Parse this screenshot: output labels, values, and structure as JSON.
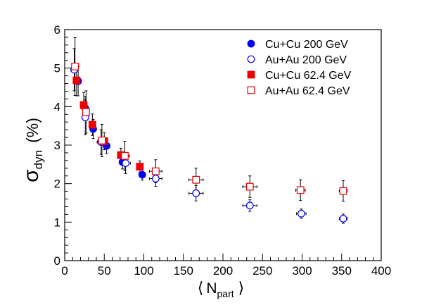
{
  "chart_data": {
    "type": "scatter",
    "title": "",
    "xlabel": {
      "open": "⟨",
      "main": "N",
      "sub": "part",
      "close": "⟩"
    },
    "ylabel": {
      "main": "σ",
      "sub": "dyn",
      "unit": "(%)"
    },
    "xlim": [
      0,
      400
    ],
    "ylim": [
      0,
      6
    ],
    "x_ticks": [
      0,
      50,
      100,
      150,
      200,
      250,
      300,
      350,
      400
    ],
    "y_ticks": [
      0,
      1,
      2,
      3,
      4,
      5,
      6
    ],
    "grid": false,
    "legend_position": "top-right",
    "series": [
      {
        "name": "Cu+Cu 200 GeV",
        "marker": "circle",
        "filled": true,
        "color": "#0000ff",
        "points": [
          {
            "x": 17,
            "y": 4.66,
            "xerr": 2,
            "yerr": 0.38
          },
          {
            "x": 26,
            "y": 3.96,
            "xerr": 2,
            "yerr": 0.3
          },
          {
            "x": 36,
            "y": 3.42,
            "xerr": 2,
            "yerr": 0.25
          },
          {
            "x": 53,
            "y": 2.98,
            "xerr": 3,
            "yerr": 0.2
          },
          {
            "x": 73,
            "y": 2.56,
            "xerr": 3,
            "yerr": 0.18
          },
          {
            "x": 98,
            "y": 2.23,
            "xerr": 3,
            "yerr": 0.14
          }
        ]
      },
      {
        "name": "Au+Au 200 GeV",
        "marker": "circle",
        "filled": false,
        "color": "#0000ff",
        "points": [
          {
            "x": 12,
            "y": 4.96,
            "xerr": 2,
            "yerr": 0.55
          },
          {
            "x": 26,
            "y": 3.72,
            "xerr": 4,
            "yerr": 0.45
          },
          {
            "x": 46,
            "y": 3.08,
            "xerr": 5,
            "yerr": 0.32
          },
          {
            "x": 77,
            "y": 2.53,
            "xerr": 6,
            "yerr": 0.27
          },
          {
            "x": 115,
            "y": 2.13,
            "xerr": 8,
            "yerr": 0.2
          },
          {
            "x": 166,
            "y": 1.75,
            "xerr": 9,
            "yerr": 0.2
          },
          {
            "x": 234,
            "y": 1.43,
            "xerr": 9,
            "yerr": 0.15
          },
          {
            "x": 299,
            "y": 1.22,
            "xerr": 6,
            "yerr": 0.12
          },
          {
            "x": 352,
            "y": 1.09,
            "xerr": 5,
            "yerr": 0.12
          }
        ]
      },
      {
        "name": "Cu+Cu 62.4 GeV",
        "marker": "square",
        "filled": true,
        "color": "#ee0000",
        "points": [
          {
            "x": 15,
            "y": 4.68,
            "xerr": 2,
            "yerr": 0.4
          },
          {
            "x": 24,
            "y": 4.04,
            "xerr": 2,
            "yerr": 0.33
          },
          {
            "x": 35,
            "y": 3.53,
            "xerr": 2,
            "yerr": 0.28
          },
          {
            "x": 50,
            "y": 3.1,
            "xerr": 3,
            "yerr": 0.22
          },
          {
            "x": 71,
            "y": 2.74,
            "xerr": 3,
            "yerr": 0.18
          },
          {
            "x": 95,
            "y": 2.44,
            "xerr": 3,
            "yerr": 0.15
          }
        ]
      },
      {
        "name": "Au+Au 62.4 GeV",
        "marker": "square",
        "filled": false,
        "color": "#ee0000",
        "points": [
          {
            "x": 13,
            "y": 5.04,
            "xerr": 2,
            "yerr": 0.75
          },
          {
            "x": 27,
            "y": 3.86,
            "xerr": 4,
            "yerr": 0.55
          },
          {
            "x": 47,
            "y": 3.12,
            "xerr": 5,
            "yerr": 0.42
          },
          {
            "x": 76,
            "y": 2.72,
            "xerr": 6,
            "yerr": 0.38
          },
          {
            "x": 115,
            "y": 2.32,
            "xerr": 8,
            "yerr": 0.3
          },
          {
            "x": 166,
            "y": 2.1,
            "xerr": 9,
            "yerr": 0.3
          },
          {
            "x": 234,
            "y": 1.92,
            "xerr": 9,
            "yerr": 0.28
          },
          {
            "x": 298,
            "y": 1.83,
            "xerr": 6,
            "yerr": 0.27
          },
          {
            "x": 352,
            "y": 1.81,
            "xerr": 5,
            "yerr": 0.27
          }
        ]
      }
    ]
  }
}
